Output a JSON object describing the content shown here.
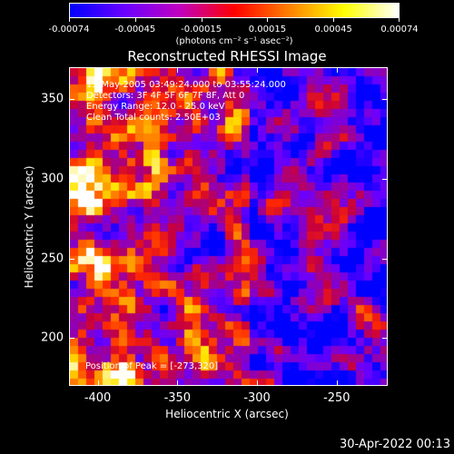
{
  "colorbar": {
    "ticks": [
      "-0.00074",
      "-0.00045",
      "-0.00015",
      "0.00015",
      "0.00045",
      "0.00074"
    ],
    "units": "(photons cm⁻² s⁻¹ asec⁻²)",
    "colormap": [
      "#0000ff",
      "#6a00ff",
      "#c000c0",
      "#ff0000",
      "#ff8000",
      "#ffff00",
      "#ffffff"
    ]
  },
  "title": "Reconstructed RHESSI Image",
  "info": {
    "line1": "13-May-2005 03:49:24.000 to 03:55:24.000",
    "line2": "Detectors: 3F 4F 5F 6F 7F 8F, Att 0",
    "line3": "Energy Range: 12.0 - 25.0 keV",
    "line4": "Clean     Total counts: 2.50E+03"
  },
  "peak": "Position of Peak = [-273,320]",
  "axes": {
    "xlabel": "Heliocentric X (arcsec)",
    "ylabel": "Heliocentric Y (arcsec)",
    "xticks": [
      "-400",
      "-350",
      "-300",
      "-250"
    ],
    "yticks": [
      "350",
      "300",
      "250",
      "200"
    ],
    "xlim": [
      -418,
      -218
    ],
    "ylim": [
      170,
      370
    ]
  },
  "timestamp": "30-Apr-2022 00:13",
  "chart_data": {
    "type": "heatmap",
    "title": "Reconstructed RHESSI Image",
    "xlabel": "Heliocentric X (arcsec)",
    "ylabel": "Heliocentric Y (arcsec)",
    "xlim": [
      -418,
      -218
    ],
    "ylim": [
      170,
      370
    ],
    "value_range": [
      -0.00074,
      0.00074
    ],
    "peak_position": [
      -273,
      320
    ]
  }
}
